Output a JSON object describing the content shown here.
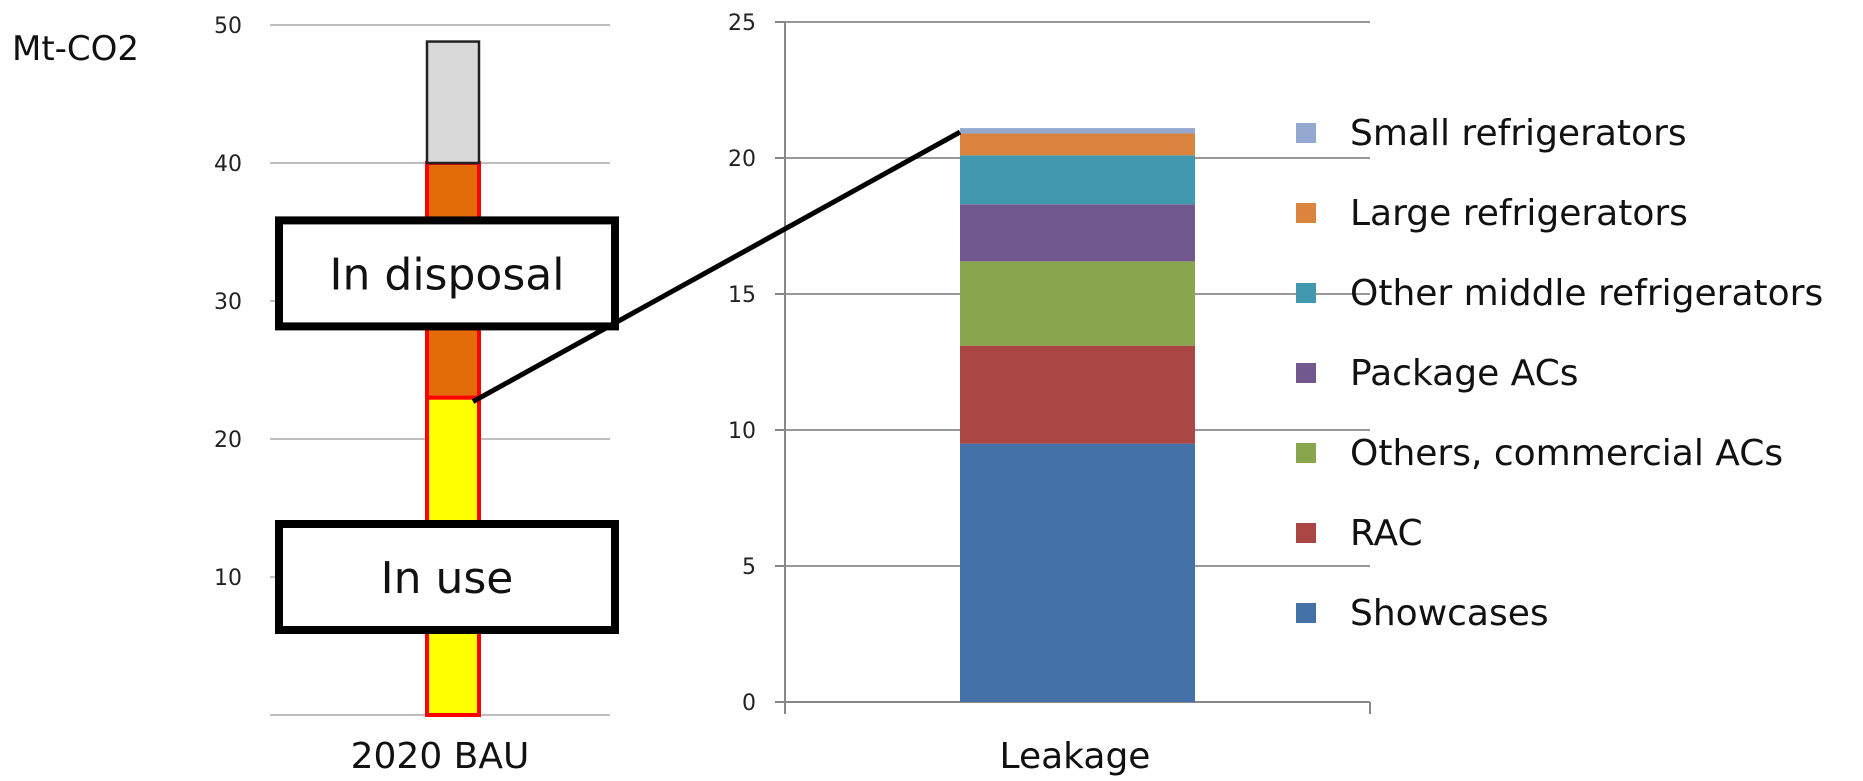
{
  "chart_data": [
    {
      "type": "bar",
      "ylabel": "Mt-CO2",
      "ylim": [
        0,
        50
      ],
      "yticks": [
        "10",
        "20",
        "30",
        "40",
        "50"
      ],
      "categories": [
        "2020 BAU"
      ],
      "grid": true,
      "series": [
        {
          "values": [
            23
          ],
          "color": "#ffff00"
        },
        {
          "values": [
            17
          ],
          "color": "#e36c09"
        },
        {
          "values": [
            8.8
          ],
          "color": "#d9d9d9"
        }
      ],
      "annotations": [
        {
          "text": "In use",
          "y": 10
        },
        {
          "text": "In disposal",
          "y": 32
        }
      ]
    },
    {
      "type": "bar",
      "ylim": [
        0,
        25
      ],
      "yticks": [
        "0",
        "5",
        "10",
        "15",
        "20",
        "25"
      ],
      "categories": [
        "Leakage"
      ],
      "grid": true,
      "legend": "right",
      "series": [
        {
          "name": "Showcases",
          "values": [
            9.5
          ],
          "color": "#4472a8"
        },
        {
          "name": "RAC",
          "values": [
            3.6
          ],
          "color": "#aa4643"
        },
        {
          "name": "Others, commercial ACs",
          "values": [
            3.1
          ],
          "color": "#89a54e"
        },
        {
          "name": "Package ACs",
          "values": [
            2.1
          ],
          "color": "#71588f"
        },
        {
          "name": "Other middle refrigerators",
          "values": [
            1.8
          ],
          "color": "#4198af"
        },
        {
          "name": "Large refrigerators",
          "values": [
            0.8
          ],
          "color": "#db843d"
        },
        {
          "name": "Small refrigerators",
          "values": [
            0.2
          ],
          "color": "#93a9cf"
        }
      ]
    }
  ]
}
